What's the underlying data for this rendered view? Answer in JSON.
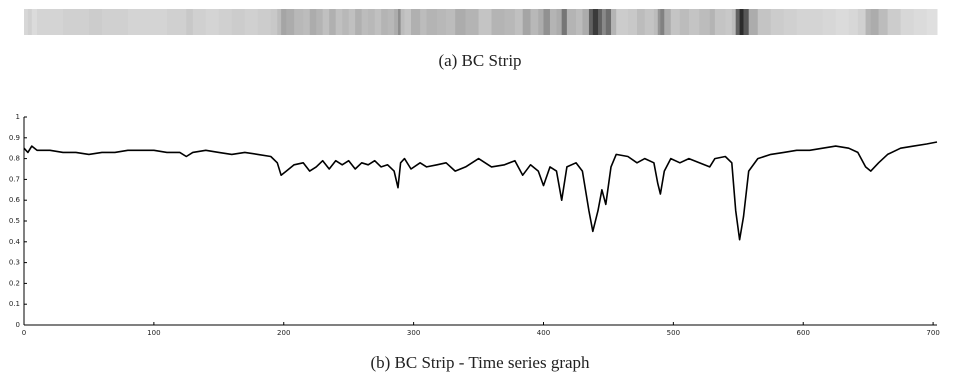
{
  "chart_data": {
    "type": "line",
    "strip_title": "(a) BC Strip",
    "title": "(b) BC Strip - Time series graph",
    "color": "#000000",
    "xlim": [
      0,
      703
    ],
    "ylim": [
      0,
      1
    ],
    "xticks": [
      0,
      100,
      200,
      300,
      400,
      500,
      600,
      700
    ],
    "yticks": [
      0,
      0.1,
      0.2,
      0.3,
      0.4,
      0.5,
      0.6,
      0.7,
      0.8,
      0.9,
      1
    ],
    "x": [
      0,
      3,
      6,
      10,
      20,
      30,
      40,
      50,
      60,
      70,
      80,
      90,
      100,
      110,
      120,
      125,
      130,
      140,
      150,
      160,
      170,
      180,
      190,
      195,
      198,
      202,
      208,
      215,
      220,
      225,
      230,
      235,
      240,
      245,
      250,
      255,
      260,
      265,
      270,
      275,
      280,
      285,
      288,
      290,
      293,
      298,
      305,
      310,
      318,
      325,
      332,
      340,
      350,
      360,
      370,
      378,
      384,
      390,
      396,
      400,
      405,
      410,
      414,
      418,
      425,
      430,
      435,
      438,
      442,
      445,
      448,
      452,
      456,
      465,
      472,
      478,
      485,
      488,
      490,
      493,
      498,
      505,
      512,
      520,
      528,
      532,
      540,
      545,
      548,
      551,
      554,
      558,
      565,
      575,
      585,
      595,
      605,
      615,
      625,
      635,
      642,
      648,
      652,
      658,
      665,
      675,
      685,
      695,
      703
    ],
    "values": [
      0.85,
      0.83,
      0.86,
      0.84,
      0.84,
      0.83,
      0.83,
      0.82,
      0.83,
      0.83,
      0.84,
      0.84,
      0.84,
      0.83,
      0.83,
      0.81,
      0.83,
      0.84,
      0.83,
      0.82,
      0.83,
      0.82,
      0.81,
      0.78,
      0.72,
      0.74,
      0.77,
      0.78,
      0.74,
      0.76,
      0.79,
      0.75,
      0.79,
      0.77,
      0.79,
      0.75,
      0.78,
      0.77,
      0.79,
      0.76,
      0.77,
      0.74,
      0.66,
      0.78,
      0.8,
      0.75,
      0.78,
      0.76,
      0.77,
      0.78,
      0.74,
      0.76,
      0.8,
      0.76,
      0.77,
      0.79,
      0.72,
      0.77,
      0.74,
      0.67,
      0.76,
      0.74,
      0.6,
      0.76,
      0.78,
      0.74,
      0.55,
      0.45,
      0.55,
      0.65,
      0.58,
      0.76,
      0.82,
      0.81,
      0.78,
      0.8,
      0.78,
      0.68,
      0.63,
      0.74,
      0.8,
      0.78,
      0.8,
      0.78,
      0.76,
      0.8,
      0.81,
      0.78,
      0.55,
      0.41,
      0.52,
      0.74,
      0.8,
      0.82,
      0.83,
      0.84,
      0.84,
      0.85,
      0.86,
      0.85,
      0.83,
      0.76,
      0.74,
      0.78,
      0.82,
      0.85,
      0.86,
      0.87,
      0.88
    ]
  }
}
